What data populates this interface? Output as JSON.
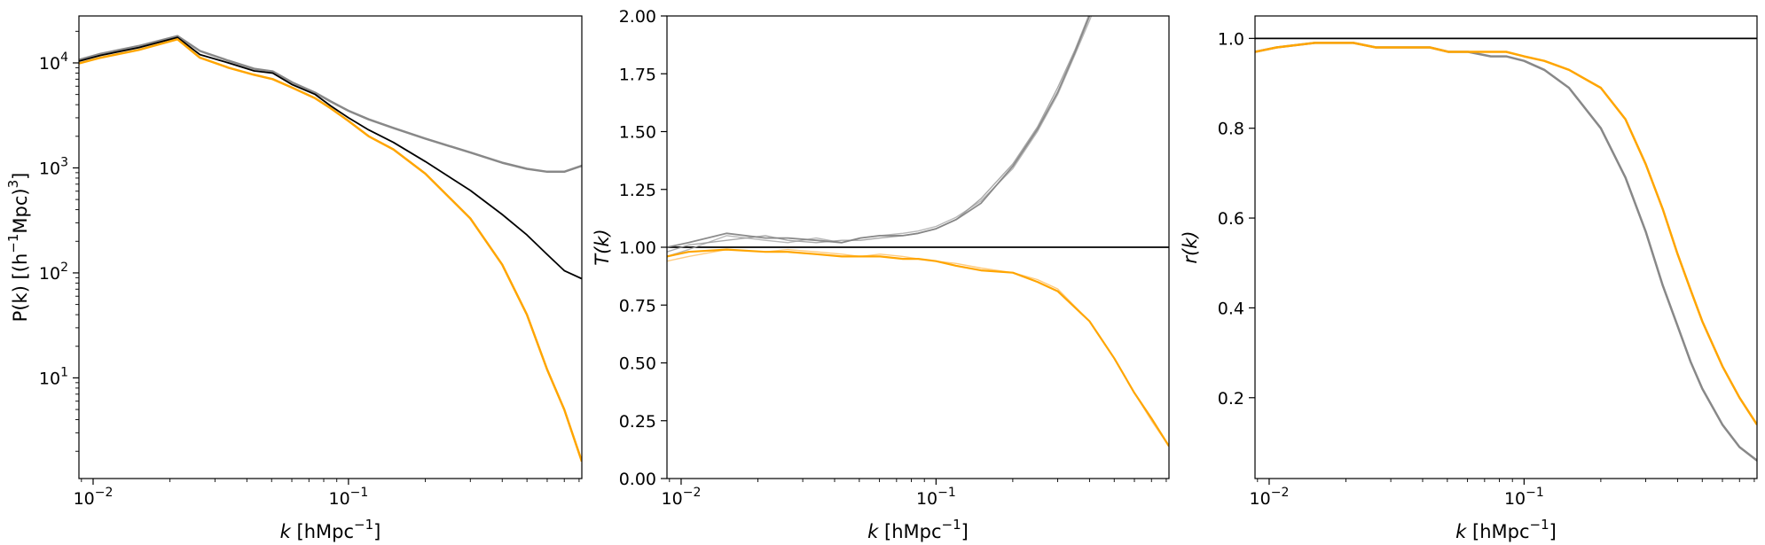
{
  "chart_data": [
    {
      "type": "line",
      "xscale": "log",
      "yscale": "log",
      "xlim": [
        0.0088,
        0.82
      ],
      "ylim": [
        1.1,
        28000
      ],
      "xlabel": {
        "pre": "k",
        "post": " [hMpc",
        "sup": "−1",
        "close": "]"
      },
      "ylabel": {
        "pre": "P(k) [(h",
        "sup1": "−1",
        "mid": "Mpc)",
        "sup2": "3",
        "close": "]"
      },
      "xticks": [
        {
          "value": 0.01,
          "base": "10",
          "exp": "−2"
        },
        {
          "value": 0.1,
          "base": "10",
          "exp": "−1"
        }
      ],
      "yticks": [
        {
          "value": 10,
          "base": "10",
          "exp": "1"
        },
        {
          "value": 100,
          "base": "10",
          "exp": "2"
        },
        {
          "value": 1000,
          "base": "10",
          "exp": "3"
        },
        {
          "value": 10000,
          "base": "10",
          "exp": "4"
        }
      ],
      "series": [
        {
          "color": "#888888",
          "width": 2.5,
          "x": [
            0.0088,
            0.0107,
            0.0151,
            0.0214,
            0.0262,
            0.0339,
            0.0427,
            0.0505,
            0.0603,
            0.0741,
            0.0851,
            0.1,
            0.12,
            0.15,
            0.2,
            0.3,
            0.4,
            0.5,
            0.6,
            0.7,
            0.82
          ],
          "y": [
            10700,
            12200,
            14500,
            18000,
            13000,
            10500,
            8800,
            8300,
            6500,
            5200,
            4300,
            3500,
            2900,
            2400,
            1900,
            1400,
            1120,
            980,
            920,
            920,
            1050
          ]
        },
        {
          "color": "#000000",
          "width": 1.8,
          "x": [
            0.0088,
            0.0107,
            0.0151,
            0.0214,
            0.0262,
            0.0339,
            0.0427,
            0.0505,
            0.0603,
            0.0741,
            0.0851,
            0.1,
            0.12,
            0.15,
            0.2,
            0.3,
            0.4,
            0.5,
            0.6,
            0.7,
            0.82
          ],
          "y": [
            10400,
            11800,
            14000,
            17500,
            12000,
            10000,
            8400,
            8000,
            6200,
            5000,
            3900,
            3000,
            2300,
            1750,
            1150,
            610,
            360,
            230,
            150,
            105,
            88
          ]
        },
        {
          "color": "#ffa500",
          "width": 2.5,
          "x": [
            0.0088,
            0.0107,
            0.0151,
            0.0214,
            0.0262,
            0.0339,
            0.0427,
            0.0505,
            0.0603,
            0.0741,
            0.0851,
            0.1,
            0.12,
            0.15,
            0.2,
            0.3,
            0.4,
            0.5,
            0.6,
            0.7,
            0.82
          ],
          "y": [
            9900,
            11200,
            13300,
            16800,
            11200,
            9000,
            7700,
            7000,
            5800,
            4600,
            3700,
            2800,
            2000,
            1500,
            880,
            330,
            120,
            40,
            12,
            5,
            1.6
          ]
        }
      ]
    },
    {
      "type": "line",
      "xscale": "log",
      "yscale": "linear",
      "xlim": [
        0.0088,
        0.82
      ],
      "ylim": [
        0,
        2
      ],
      "xlabel": {
        "pre": "k",
        "post": " [hMpc",
        "sup": "−1",
        "close": "]"
      },
      "ylabel": {
        "text": "T(k)"
      },
      "xticks": [
        {
          "value": 0.01,
          "base": "10",
          "exp": "−2"
        },
        {
          "value": 0.1,
          "base": "10",
          "exp": "−1"
        }
      ],
      "yticks": [
        {
          "value": 0,
          "label": "0.00"
        },
        {
          "value": 0.25,
          "label": "0.25"
        },
        {
          "value": 0.5,
          "label": "0.50"
        },
        {
          "value": 0.75,
          "label": "0.75"
        },
        {
          "value": 1,
          "label": "1.00"
        },
        {
          "value": 1.25,
          "label": "1.25"
        },
        {
          "value": 1.5,
          "label": "1.50"
        },
        {
          "value": 1.75,
          "label": "1.75"
        },
        {
          "value": 2,
          "label": "2.00"
        }
      ],
      "hlines": [
        {
          "y": 1,
          "color": "#000000",
          "width": 1.8
        }
      ],
      "series": [
        {
          "color": "#aaaaaa",
          "width": 1.4,
          "opacity": 0.85,
          "x": [
            0.0088,
            0.0107,
            0.0151,
            0.0214,
            0.0262,
            0.0339,
            0.0427,
            0.0505,
            0.0603,
            0.0741,
            0.0851,
            0.1,
            0.12,
            0.15,
            0.2,
            0.25,
            0.3,
            0.35,
            0.4,
            0.45
          ],
          "y": [
            0.96,
            0.99,
            1.05,
            1.03,
            1.02,
            1.04,
            1.02,
            1.04,
            1.05,
            1.06,
            1.07,
            1.09,
            1.13,
            1.2,
            1.34,
            1.5,
            1.66,
            1.83,
            1.98,
            2.12
          ]
        },
        {
          "color": "#999999",
          "width": 1.4,
          "opacity": 0.85,
          "x": [
            0.0088,
            0.0107,
            0.0151,
            0.0214,
            0.0262,
            0.0339,
            0.0427,
            0.0505,
            0.0603,
            0.0741,
            0.0851,
            0.1,
            0.12,
            0.15,
            0.2,
            0.25,
            0.3,
            0.35,
            0.4,
            0.45
          ],
          "y": [
            0.98,
            1.01,
            1.03,
            1.05,
            1.03,
            1.02,
            1.03,
            1.03,
            1.04,
            1.05,
            1.06,
            1.08,
            1.12,
            1.21,
            1.36,
            1.52,
            1.69,
            1.85,
            2.01,
            2.14
          ]
        },
        {
          "color": "#808080",
          "width": 1.8,
          "opacity": 0.9,
          "x": [
            0.0088,
            0.0107,
            0.0151,
            0.0214,
            0.0262,
            0.0339,
            0.0427,
            0.0505,
            0.0603,
            0.0741,
            0.0851,
            0.1,
            0.12,
            0.15,
            0.2,
            0.25,
            0.3,
            0.35,
            0.4,
            0.45
          ],
          "y": [
            1.0,
            1.02,
            1.06,
            1.04,
            1.04,
            1.03,
            1.02,
            1.04,
            1.05,
            1.05,
            1.06,
            1.08,
            1.12,
            1.19,
            1.35,
            1.51,
            1.67,
            1.84,
            2.0,
            2.13
          ]
        },
        {
          "color": "#ffc266",
          "width": 1.4,
          "opacity": 0.85,
          "x": [
            0.0088,
            0.0107,
            0.0151,
            0.0214,
            0.0262,
            0.0339,
            0.0427,
            0.0505,
            0.0603,
            0.0741,
            0.0851,
            0.1,
            0.12,
            0.15,
            0.2,
            0.25,
            0.3,
            0.4,
            0.5,
            0.6,
            0.7,
            0.82
          ],
          "y": [
            0.94,
            0.96,
            0.99,
            0.98,
            0.99,
            0.98,
            0.97,
            0.96,
            0.97,
            0.96,
            0.95,
            0.94,
            0.93,
            0.91,
            0.89,
            0.86,
            0.82,
            0.68,
            0.52,
            0.37,
            0.25,
            0.14
          ]
        },
        {
          "color": "#ffa500",
          "width": 2.2,
          "opacity": 1,
          "x": [
            0.0088,
            0.0107,
            0.0151,
            0.0214,
            0.0262,
            0.0339,
            0.0427,
            0.0505,
            0.0603,
            0.0741,
            0.0851,
            0.1,
            0.12,
            0.15,
            0.2,
            0.25,
            0.3,
            0.4,
            0.5,
            0.6,
            0.7,
            0.82
          ],
          "y": [
            0.96,
            0.98,
            0.99,
            0.98,
            0.98,
            0.97,
            0.96,
            0.96,
            0.96,
            0.95,
            0.95,
            0.94,
            0.92,
            0.9,
            0.89,
            0.85,
            0.81,
            0.68,
            0.52,
            0.37,
            0.26,
            0.14
          ]
        }
      ]
    },
    {
      "type": "line",
      "xscale": "log",
      "yscale": "linear",
      "xlim": [
        0.0088,
        0.82
      ],
      "ylim": [
        0.02,
        1.05
      ],
      "xlabel": {
        "pre": "k",
        "post": " [hMpc",
        "sup": "−1",
        "close": "]"
      },
      "ylabel": {
        "text": "r(k)"
      },
      "xticks": [
        {
          "value": 0.01,
          "base": "10",
          "exp": "−2"
        },
        {
          "value": 0.1,
          "base": "10",
          "exp": "−1"
        }
      ],
      "yticks": [
        {
          "value": 0.2,
          "label": "0.2"
        },
        {
          "value": 0.4,
          "label": "0.4"
        },
        {
          "value": 0.6,
          "label": "0.6"
        },
        {
          "value": 0.8,
          "label": "0.8"
        },
        {
          "value": 1.0,
          "label": "1.0"
        }
      ],
      "hlines": [
        {
          "y": 1,
          "color": "#000000",
          "width": 1.8
        }
      ],
      "series": [
        {
          "color": "#888888",
          "width": 2.5,
          "x": [
            0.0088,
            0.0107,
            0.0151,
            0.0214,
            0.0262,
            0.0339,
            0.0427,
            0.0505,
            0.0603,
            0.0741,
            0.0851,
            0.1,
            0.12,
            0.15,
            0.2,
            0.25,
            0.3,
            0.35,
            0.4,
            0.45,
            0.5,
            0.6,
            0.7,
            0.82
          ],
          "y": [
            0.97,
            0.98,
            0.99,
            0.99,
            0.98,
            0.98,
            0.98,
            0.97,
            0.97,
            0.96,
            0.96,
            0.95,
            0.93,
            0.89,
            0.8,
            0.69,
            0.57,
            0.45,
            0.36,
            0.28,
            0.22,
            0.14,
            0.09,
            0.06
          ]
        },
        {
          "color": "#ffa500",
          "width": 2.5,
          "x": [
            0.0088,
            0.0107,
            0.0151,
            0.0214,
            0.0262,
            0.0339,
            0.0427,
            0.0505,
            0.0603,
            0.0741,
            0.0851,
            0.1,
            0.12,
            0.15,
            0.2,
            0.25,
            0.3,
            0.35,
            0.4,
            0.45,
            0.5,
            0.6,
            0.7,
            0.82
          ],
          "y": [
            0.97,
            0.98,
            0.99,
            0.99,
            0.98,
            0.98,
            0.98,
            0.97,
            0.97,
            0.97,
            0.97,
            0.96,
            0.95,
            0.93,
            0.89,
            0.82,
            0.72,
            0.62,
            0.52,
            0.44,
            0.37,
            0.27,
            0.2,
            0.14
          ]
        }
      ]
    }
  ]
}
